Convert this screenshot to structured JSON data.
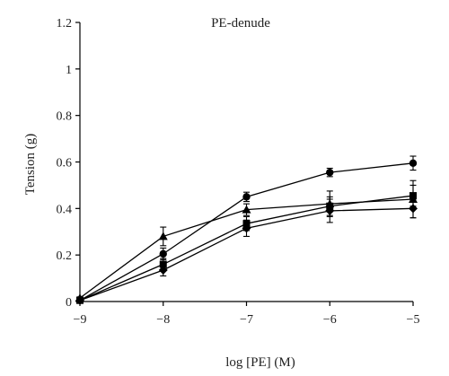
{
  "chart_data": {
    "type": "line",
    "title": "PE-denude",
    "xlabel": "log [PE] (M)",
    "ylabel": "Tension (g)",
    "xlim": [
      -9,
      -5
    ],
    "ylim": [
      0,
      1.2
    ],
    "x_ticks": [
      -9,
      -8,
      -7,
      -6,
      -5
    ],
    "x_tick_labels": [
      "−9",
      "−8",
      "−7",
      "−6",
      "−5"
    ],
    "y_ticks": [
      0,
      0.2,
      0.4,
      0.6,
      0.8,
      1,
      1.2
    ],
    "y_tick_labels": [
      "0",
      "0.2",
      "0.4",
      "0.6",
      "0.8",
      "1",
      "1.2"
    ],
    "grid": false,
    "x": [
      -9,
      -8,
      -7,
      -6,
      -5
    ],
    "series": [
      {
        "marker": "circle",
        "values": [
          0.005,
          0.205,
          0.45,
          0.555,
          0.595
        ],
        "errors": [
          0.005,
          0.025,
          0.02,
          0.018,
          0.03
        ]
      },
      {
        "marker": "triangle",
        "values": [
          0.015,
          0.28,
          0.395,
          0.42,
          0.44
        ],
        "errors": [
          0.005,
          0.04,
          0.025,
          0.055,
          0.08
        ]
      },
      {
        "marker": "square",
        "values": [
          0.005,
          0.16,
          0.335,
          0.41,
          0.455
        ],
        "errors": [
          0.005,
          0.025,
          0.03,
          0.04,
          0.045
        ]
      },
      {
        "marker": "diamond",
        "values": [
          0.005,
          0.135,
          0.315,
          0.39,
          0.4
        ],
        "errors": [
          0.005,
          0.025,
          0.035,
          0.05,
          0.04
        ]
      }
    ]
  }
}
